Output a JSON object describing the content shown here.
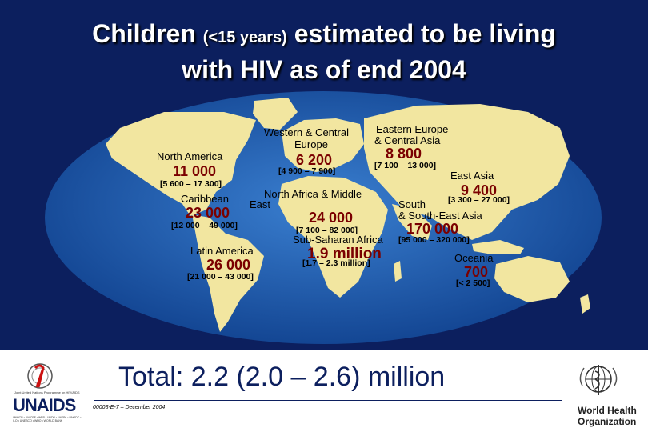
{
  "title": {
    "line1_main": "Children",
    "line1_paren": "(<15 years)",
    "line1_rest": "estimated to be living",
    "line2": "with HIV as of end 2004"
  },
  "regions": {
    "north_america": {
      "name": "North America",
      "value": "11 000",
      "range": "[5 600 – 17 300]"
    },
    "caribbean": {
      "name": "Caribbean",
      "value": "23 000",
      "range": "[12 000 – 49 000]"
    },
    "latin_america": {
      "name": "Latin America",
      "value": "26 000",
      "range": "[21 000 – 43 000]"
    },
    "western_central_europe": {
      "name1": "Western & Central",
      "name2": "Europe",
      "value": "6 200",
      "range": "[4 900 – 7 900]"
    },
    "north_africa_middle_east": {
      "name1": "North Africa & Middle",
      "name2": "East",
      "value": "24 000",
      "range": "[7 100 – 82 000]"
    },
    "sub_saharan_africa": {
      "name": "Sub-Saharan Africa",
      "value": "1.9 million",
      "range": "[1.7 – 2.3 million]"
    },
    "eastern_europe_central_asia": {
      "name1": "Eastern Europe",
      "name2": "& Central Asia",
      "value": "8 800",
      "range": "[7 100 – 13 000]"
    },
    "east_asia": {
      "name": "East Asia",
      "value": "9 400",
      "range": "[3 300 – 27 000]"
    },
    "south_southeast_asia": {
      "name1": "South",
      "name2": "& South-East Asia",
      "value": "170 000",
      "range": "[95 000 – 320 000]"
    },
    "oceania": {
      "name": "Oceania",
      "value": "700",
      "range": "[< 2 500]"
    }
  },
  "footer": {
    "total": "Total: 2.2 (2.0 – 2.6) million",
    "code": "00003-E-7 – December 2004",
    "unaids_name": "UNAIDS",
    "unaids_sub": "UNHCR • UNICEF • WFP • UNDP • UNFPA • UNODC • ILO • UNESCO • WHO • WORLD BANK",
    "unaids_top": "Joint United Nations Programme on HIV/AIDS",
    "who_line1": "World Health",
    "who_line2": "Organization"
  },
  "colors": {
    "background": "#0c1f5e",
    "ocean": "#1a57a8",
    "land": "#f2e6a0",
    "value": "#7a0000"
  }
}
